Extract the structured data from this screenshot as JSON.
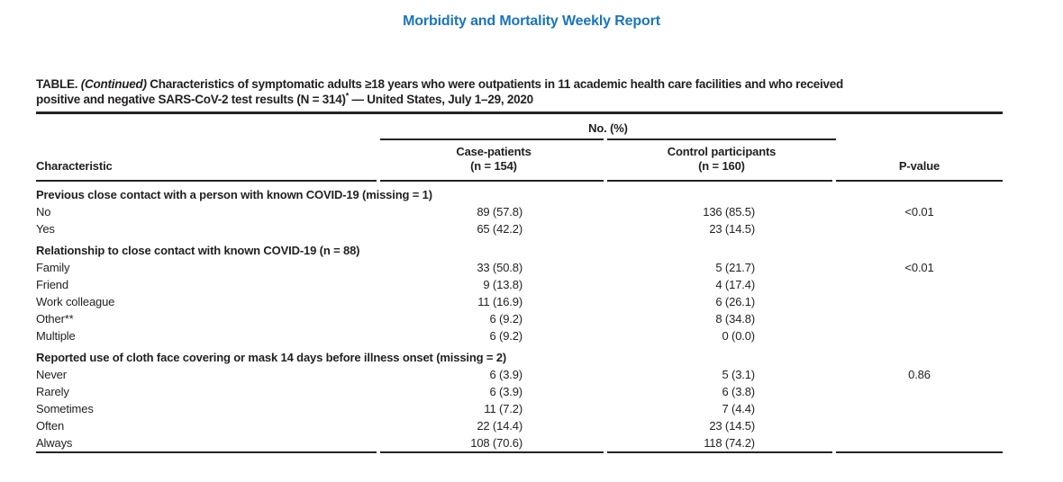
{
  "page": {
    "running_header": "Morbidity and Mortality Weekly Report",
    "colors": {
      "accent_blue": "#1a75bc",
      "text": "#231f20",
      "rule": "#262223"
    }
  },
  "table": {
    "title": {
      "label": "TABLE.",
      "continued": "(Continued)",
      "line1_rest": "Characteristics of symptomatic adults ≥18 years who were outpatients in 11 academic health care facilities and who received",
      "line2": "positive and negative SARS-CoV-2 test results (N = 314)",
      "footnote_marker": "*",
      "line2_tail": "— United States, July 1–29, 2020"
    },
    "header": {
      "spanner": "No. (%)",
      "characteristic": "Characteristic",
      "case_line1": "Case-patients",
      "case_line2": "(n = 154)",
      "control_line1": "Control participants",
      "control_line2": "(n = 160)",
      "pvalue": "P-value"
    },
    "rows": [
      {
        "type": "section",
        "label": "Previous close contact with a person with known COVID-19 (missing = 1)"
      },
      {
        "type": "data",
        "label": "No",
        "case": "89 (57.8)",
        "control": "136 (85.5)",
        "p": "<0.01"
      },
      {
        "type": "data",
        "label": "Yes",
        "case": "65 (42.2)",
        "control": "23 (14.5)",
        "p": ""
      },
      {
        "type": "section",
        "label": "Relationship to close contact with known COVID-19 (n = 88)"
      },
      {
        "type": "data",
        "label": "Family",
        "case": "33 (50.8)",
        "control": "5 (21.7)",
        "p": "<0.01"
      },
      {
        "type": "data",
        "label": "Friend",
        "case": "9 (13.8)",
        "control": "4 (17.4)",
        "p": ""
      },
      {
        "type": "data",
        "label": "Work colleague",
        "case": "11 (16.9)",
        "control": "6 (26.1)",
        "p": ""
      },
      {
        "type": "data",
        "label": "Other**",
        "case": "6 (9.2)",
        "control": "8 (34.8)",
        "p": ""
      },
      {
        "type": "data",
        "label": "Multiple",
        "case": "6 (9.2)",
        "control": "0 (0.0)",
        "p": ""
      },
      {
        "type": "section",
        "label": "Reported use of cloth face covering or mask 14 days before illness onset (missing = 2)"
      },
      {
        "type": "data",
        "label": "Never",
        "case": "6 (3.9)",
        "control": "5 (3.1)",
        "p": "0.86"
      },
      {
        "type": "data",
        "label": "Rarely",
        "case": "6 (3.9)",
        "control": "6 (3.8)",
        "p": ""
      },
      {
        "type": "data",
        "label": "Sometimes",
        "case": "11 (7.2)",
        "control": "7 (4.4)",
        "p": ""
      },
      {
        "type": "data",
        "label": "Often",
        "case": "22 (14.4)",
        "control": "23 (14.5)",
        "p": ""
      },
      {
        "type": "data",
        "label": "Always",
        "case": "108 (70.6)",
        "control": "118 (74.2)",
        "p": ""
      }
    ]
  }
}
